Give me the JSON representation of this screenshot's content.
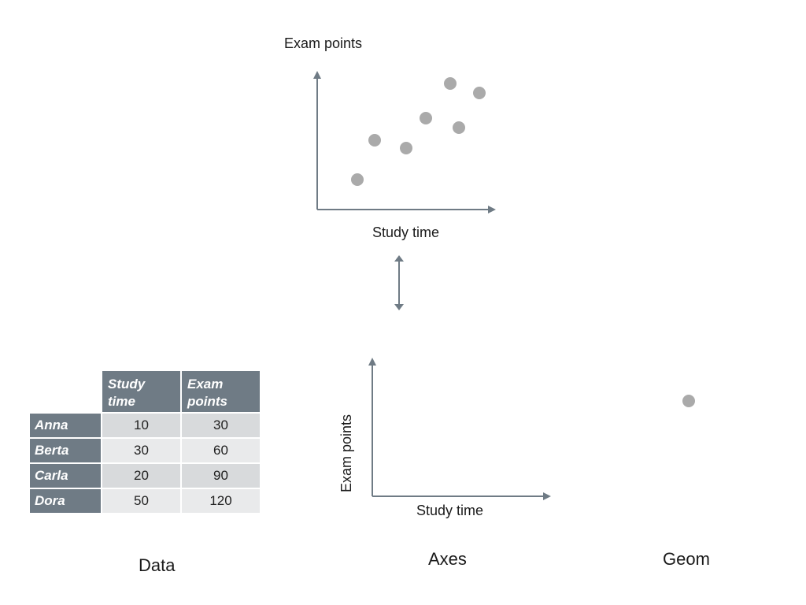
{
  "colors": {
    "axis": "#6f7b85",
    "point": "#aaaaaa",
    "table_header_bg": "#6f7b85",
    "cell_dark": "#d8dadc",
    "cell_light": "#e9eaeb"
  },
  "top_plot": {
    "ylabel": "Exam points",
    "xlabel": "Study time",
    "point_count": 7
  },
  "axes_plot": {
    "ylabel": "Exam points",
    "xlabel": "Study time"
  },
  "table": {
    "headers": [
      "Study time",
      "Exam points"
    ],
    "header_lines": [
      [
        "Study",
        "time"
      ],
      [
        "Exam",
        "points"
      ]
    ],
    "rows": [
      {
        "name": "Anna",
        "study_time": "10",
        "exam_points": "30"
      },
      {
        "name": "Berta",
        "study_time": "30",
        "exam_points": "60"
      },
      {
        "name": "Carla",
        "study_time": "20",
        "exam_points": "90"
      },
      {
        "name": "Dora",
        "study_time": "50",
        "exam_points": "120"
      }
    ]
  },
  "captions": {
    "data": "Data",
    "axes": "Axes",
    "geom": "Geom"
  },
  "icons": {
    "double_arrow": "vertical-double-arrow-icon",
    "geom_point": "point-icon"
  }
}
